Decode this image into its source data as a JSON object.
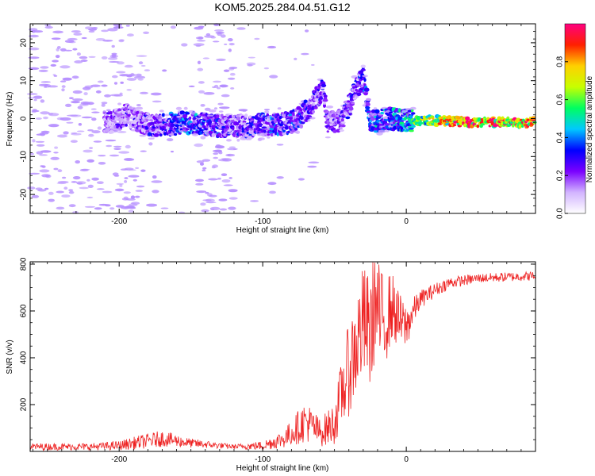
{
  "title": "KOM5.2025.284.04.51.G12",
  "colors": {
    "snr_line": "#ee2222",
    "spectrogram_low": "#b48cff",
    "colorbar_stops": [
      "#ffffff",
      "#d2b4ff",
      "#7a00ff",
      "#0000ff",
      "#00c8ff",
      "#00ff60",
      "#c8ff00",
      "#ffd000",
      "#ff2000",
      "#ff0080"
    ]
  },
  "chart_data": [
    {
      "type": "heatmap",
      "name": "spectrogram",
      "xlabel": "Height of straight line (km)",
      "ylabel": "Frequency (Hz)",
      "xlim": [
        -262,
        90
      ],
      "ylim": [
        -25,
        25
      ],
      "xticks": [
        -200,
        -100,
        0
      ],
      "xtick_labels": [
        "-200",
        "-100",
        "0"
      ],
      "yticks": [
        -20,
        -10,
        0,
        10,
        20
      ],
      "ytick_labels": [
        "-20",
        "-10",
        "0",
        "10",
        "20"
      ],
      "colorbar": {
        "label": "Normalized spectral amplitude",
        "range": [
          0,
          1
        ],
        "ticks": [
          0.0,
          0.2,
          0.4,
          0.6,
          0.8
        ],
        "tick_labels": [
          "0.0",
          "0.2",
          "0.4",
          "0.6",
          "0.8"
        ]
      },
      "trace": {
        "note_free": true,
        "points": [
          [
            -205,
            -1
          ],
          [
            -195,
            1
          ],
          [
            -185,
            -1
          ],
          [
            -175,
            -2
          ],
          [
            -165,
            -1.5
          ],
          [
            -150,
            -1
          ],
          [
            -140,
            -1.5
          ],
          [
            -130,
            -2
          ],
          [
            -115,
            -2
          ],
          [
            -100,
            -1.5
          ],
          [
            -90,
            -1.5
          ],
          [
            -80,
            -1
          ],
          [
            -72,
            1
          ],
          [
            -65,
            4
          ],
          [
            -58,
            8
          ],
          [
            -55,
            -1
          ],
          [
            -45,
            -0.5
          ],
          [
            -40,
            3
          ],
          [
            -35,
            8
          ],
          [
            -30,
            11
          ],
          [
            -25,
            -1
          ],
          [
            -10,
            0
          ],
          [
            0,
            -0.5
          ],
          [
            20,
            -0.5
          ],
          [
            50,
            -1
          ],
          [
            88,
            -1
          ]
        ],
        "peak_amplitude": [
          [
            -205,
            0.25
          ],
          [
            -180,
            0.3
          ],
          [
            -150,
            0.45
          ],
          [
            -120,
            0.3
          ],
          [
            -95,
            0.4
          ],
          [
            -70,
            0.35
          ],
          [
            -45,
            0.3
          ],
          [
            -20,
            0.45
          ],
          [
            0,
            0.55
          ],
          [
            20,
            0.85
          ],
          [
            50,
            0.95
          ],
          [
            88,
            0.9
          ]
        ]
      }
    },
    {
      "type": "line",
      "name": "snr",
      "xlabel": "Height of straight line (km)",
      "ylabel": "SNR (v/v)",
      "xlim": [
        -262,
        90
      ],
      "ylim": [
        0,
        810
      ],
      "xticks": [
        -200,
        -100,
        0
      ],
      "xtick_labels": [
        "-200",
        "-100",
        "0"
      ],
      "yticks": [
        200,
        400,
        600,
        800
      ],
      "ytick_labels": [
        "200",
        "400",
        "600",
        "800"
      ],
      "envelope": {
        "x": [
          -262,
          -220,
          -200,
          -185,
          -170,
          -150,
          -120,
          -100,
          -85,
          -70,
          -60,
          -50,
          -45,
          -40,
          -35,
          -30,
          -25,
          -22,
          -18,
          -15,
          -10,
          -5,
          0,
          5,
          10,
          20,
          30,
          50,
          70,
          90
        ],
        "y": [
          20,
          20,
          25,
          40,
          55,
          35,
          20,
          25,
          55,
          130,
          80,
          120,
          250,
          350,
          450,
          550,
          500,
          640,
          560,
          560,
          620,
          560,
          530,
          600,
          650,
          690,
          720,
          740,
          745,
          750
        ],
        "jitter": [
          15,
          15,
          20,
          30,
          35,
          20,
          10,
          20,
          40,
          90,
          60,
          90,
          150,
          200,
          230,
          250,
          250,
          250,
          220,
          200,
          150,
          120,
          100,
          60,
          40,
          30,
          25,
          20,
          20,
          20
        ]
      }
    }
  ]
}
